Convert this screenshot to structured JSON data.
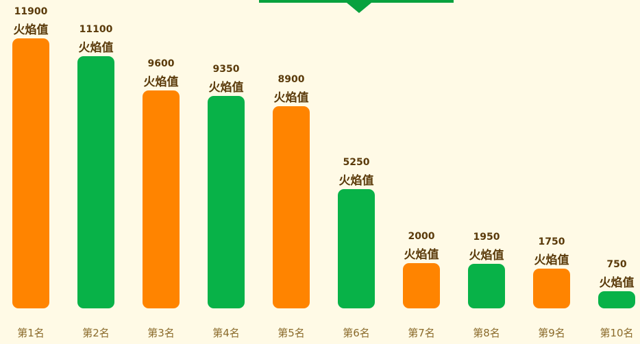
{
  "colors": {
    "background": "#fffae6",
    "orange": "#ff8400",
    "green": "#08b248",
    "banner": "#08a13e",
    "label": "#5a3a0a",
    "category": "#8a6a2a"
  },
  "chart_data": {
    "type": "bar",
    "categories": [
      "第1名",
      "第2名",
      "第3名",
      "第4名",
      "第5名",
      "第6名",
      "第7名",
      "第8名",
      "第9名",
      "第10名"
    ],
    "values": [
      11900,
      11100,
      9600,
      9350,
      8900,
      5250,
      2000,
      1950,
      1750,
      750
    ],
    "value_unit": "火焰值",
    "bar_colors": [
      "#ff8400",
      "#08b248",
      "#ff8400",
      "#08b248",
      "#ff8400",
      "#08b248",
      "#ff8400",
      "#08b248",
      "#ff8400",
      "#08b248"
    ],
    "ylim": [
      0,
      11900
    ],
    "grid": false
  }
}
